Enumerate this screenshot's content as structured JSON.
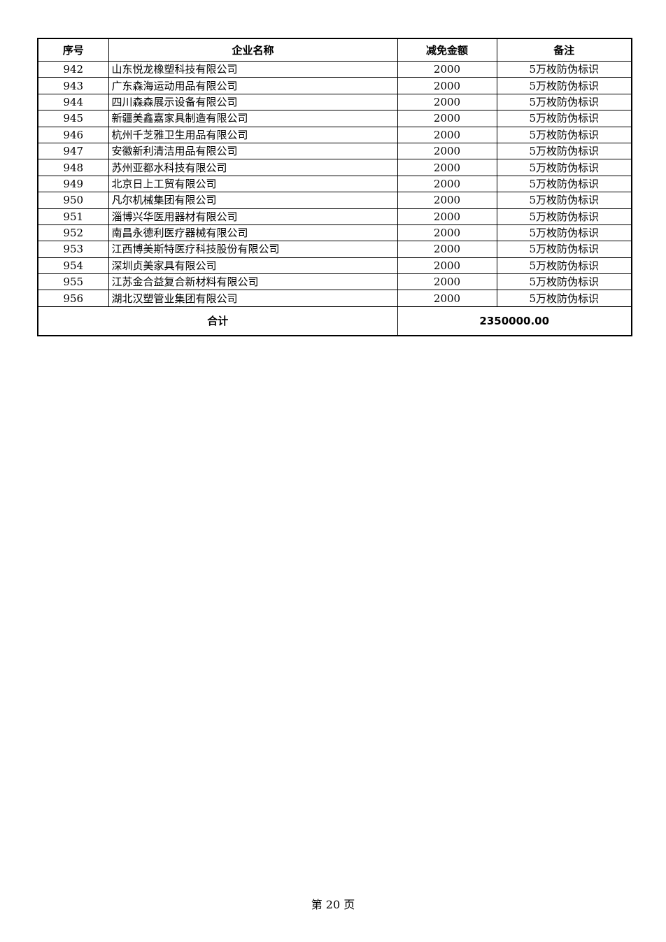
{
  "table": {
    "headers": [
      "序号",
      "企业名称",
      "减免金额",
      "备注"
    ],
    "rows": [
      [
        "942",
        "山东悦龙橡塑科技有限公司",
        "2000",
        "5万枚防伪标识"
      ],
      [
        "943",
        "广东森海运动用品有限公司",
        "2000",
        "5万枚防伪标识"
      ],
      [
        "944",
        "四川森森展示设备有限公司",
        "2000",
        "5万枚防伪标识"
      ],
      [
        "945",
        "新疆美鑫嘉家具制造有限公司",
        "2000",
        "5万枚防伪标识"
      ],
      [
        "946",
        "杭州千芝雅卫生用品有限公司",
        "2000",
        "5万枚防伪标识"
      ],
      [
        "947",
        "安徽新利清洁用品有限公司",
        "2000",
        "5万枚防伪标识"
      ],
      [
        "948",
        "苏州亚都水科技有限公司",
        "2000",
        "5万枚防伪标识"
      ],
      [
        "949",
        "北京日上工贸有限公司",
        "2000",
        "5万枚防伪标识"
      ],
      [
        "950",
        "凡尔机械集团有限公司",
        "2000",
        "5万枚防伪标识"
      ],
      [
        "951",
        "淄博兴华医用器材有限公司",
        "2000",
        "5万枚防伪标识"
      ],
      [
        "952",
        "南昌永德利医疗器械有限公司",
        "2000",
        "5万枚防伪标识"
      ],
      [
        "953",
        "江西博美斯特医疗科技股份有限公司",
        "2000",
        "5万枚防伪标识"
      ],
      [
        "954",
        "深圳贞美家具有限公司",
        "2000",
        "5万枚防伪标识"
      ],
      [
        "955",
        "江苏金合益复合新材料有限公司",
        "2000",
        "5万枚防伪标识"
      ],
      [
        "956",
        "湖北汉塑管业集团有限公司",
        "2000",
        "5万枚防伪标识"
      ]
    ],
    "total_label": "合计",
    "total_value": "2350000.00"
  },
  "footer": {
    "page_label": "第 20 页"
  }
}
